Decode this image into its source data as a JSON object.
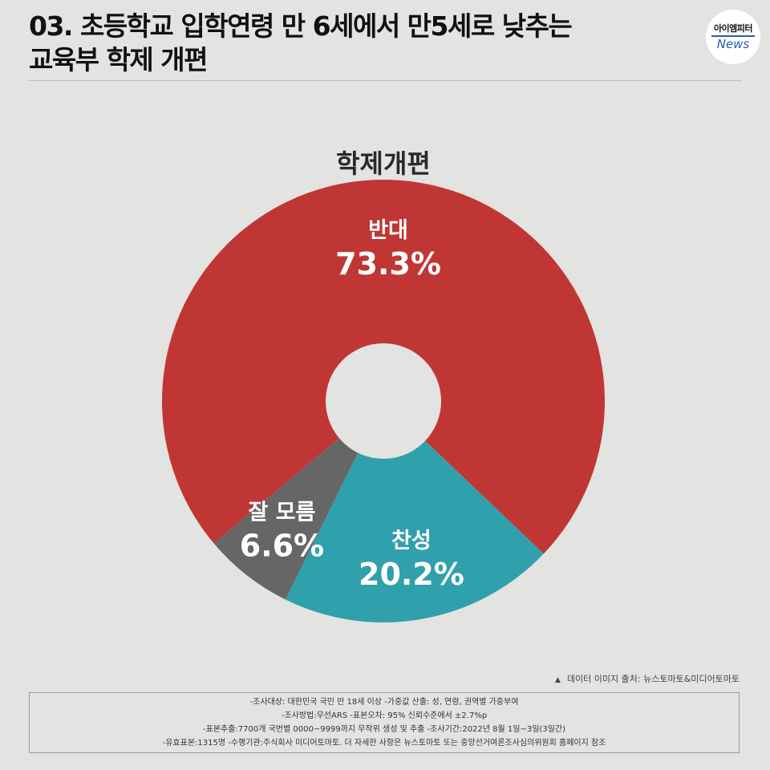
{
  "header": {
    "title_line1": "03. 초등학교 입학연령 만 6세에서 만5세로 낮추는",
    "title_line2": "교육부 학제 개편"
  },
  "logo": {
    "top_text": "아이엠피터",
    "bottom_text": "News",
    "accent_color": "#1f5fb0"
  },
  "chart_data": {
    "type": "pie",
    "title": "학제개편",
    "donut": true,
    "slices": [
      {
        "label": "반대",
        "value": 73.3,
        "display": "73.3%",
        "color": "#c03634"
      },
      {
        "label": "찬성",
        "value": 20.2,
        "display": "20.2%",
        "color": "#30a0ad"
      },
      {
        "label": "잘 모름",
        "value": 6.6,
        "display": "6.6%",
        "color": "#666666"
      }
    ]
  },
  "source": {
    "icon": "triangle-up-icon",
    "text": "데이터 이미지 출처: 뉴스토마토&미디어토마토"
  },
  "notes": [
    "-조사대상: 대한민국 국민 만 18세 이상  -가중값 산출: 성, 연령, 권역별 가중부여",
    "-조사방법:무선ARS -표본오차: 95% 신뢰수준에서 ±2.7%p",
    "-표본추출:7700개 국번별 0000~9999까지 무작위 생성 및 추출 -조사기간:2022년 8월 1일~3일(3일간)",
    "-유효표본:1315명 -수행기관:주식회사 미디어토마토. 더 자세한 사항은 뉴스토마토 또는 중앙선거여론조사심의위원회 홈페이지 참조"
  ]
}
